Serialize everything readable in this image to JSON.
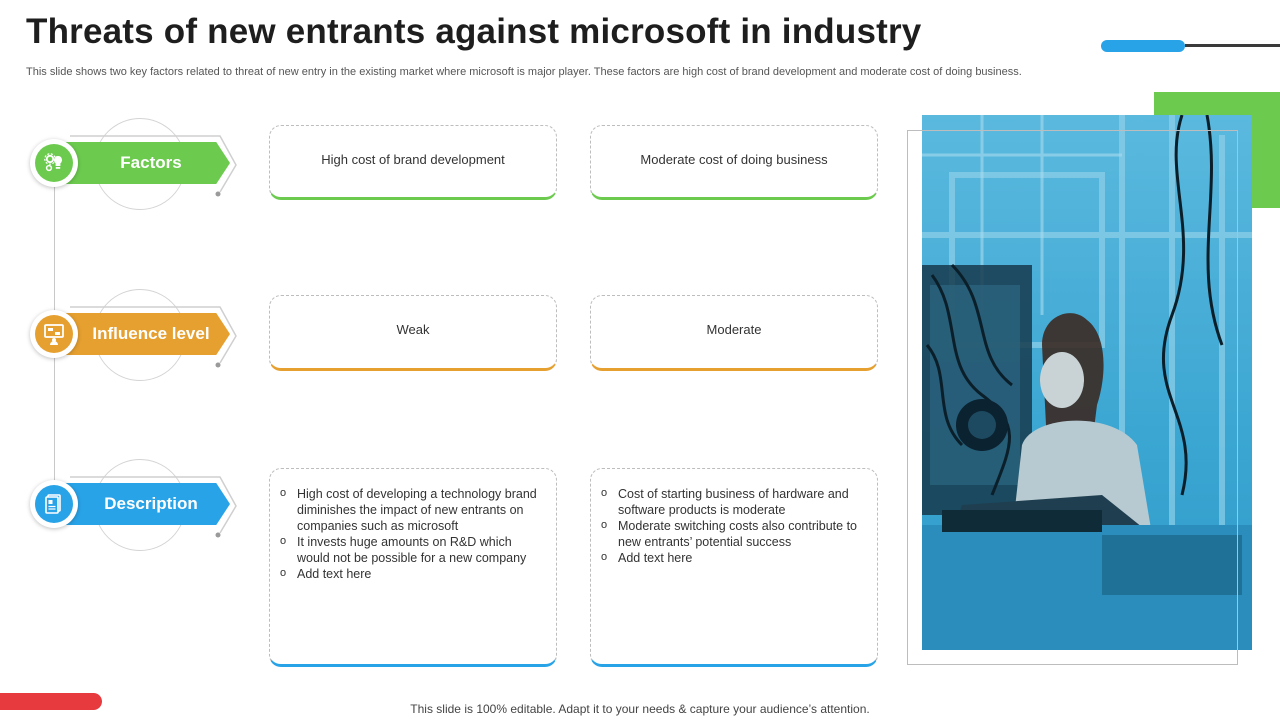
{
  "header": {
    "title": "Threats of new entrants against microsoft in industry",
    "subtitle": "This slide shows two key factors related to threat of new entry in the existing market where microsoft is major player. These factors are high cost of brand development and moderate cost of doing business."
  },
  "rows": [
    {
      "label": "Factors",
      "color": "#6ccb4f",
      "icon": "gears-bulb-icon",
      "cards": [
        "High cost of brand development",
        "Moderate  cost of doing business"
      ]
    },
    {
      "label": "Influence level",
      "color": "#e6a030",
      "icon": "presentation-board-icon",
      "cards": [
        "Weak",
        "Moderate"
      ]
    },
    {
      "label": "Description",
      "color": "#29a3e8",
      "icon": "documents-icon",
      "card_lists": [
        [
          "High cost of developing  a technology brand diminishes the impact of new entrants on companies such as microsoft",
          "It invests huge amounts on R&D which would not be possible for a new company",
          "Add text here"
        ],
        [
          "Cost of starting business of hardware  and software products is moderate",
          "Moderate  switching costs also contribute to new entrants’ potential success",
          "Add text here"
        ]
      ]
    }
  ],
  "image": {
    "subject": "woman working at computer in hardware lab",
    "tint": "#3ba6d2"
  },
  "colors": {
    "green": "#6ccb4f",
    "orange": "#e6a030",
    "blue": "#29a3e8",
    "red": "#e63a3f"
  },
  "footer": {
    "note": "This slide is 100% editable. Adapt it to your needs & capture your audience’s attention."
  }
}
